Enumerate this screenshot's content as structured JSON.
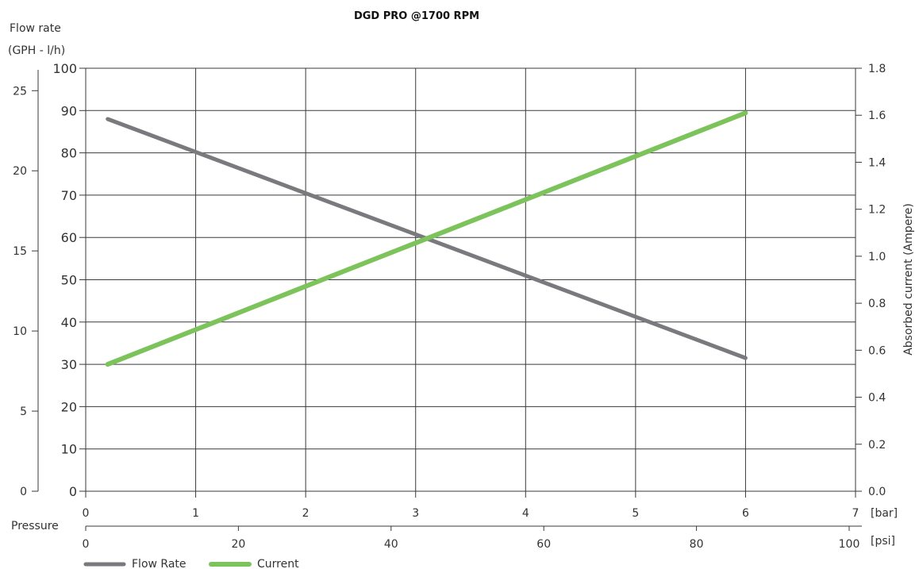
{
  "chart_data": {
    "type": "line",
    "title": "DGD PRO @1700 RPM",
    "left_axis_title_line1": "Flow rate",
    "left_axis_title_line2": "(GPH - l/h)",
    "right_axis_title": "Absorbed current  (Ampere)",
    "xlabel": "Pressure",
    "bar_unit": "[bar]",
    "psi_unit": "[psi]",
    "x_bar": [
      0.2,
      1,
      2,
      3,
      4,
      5,
      6
    ],
    "x_ticks_bar": [
      "0",
      "1",
      "2",
      "3",
      "4",
      "5",
      "6",
      "7"
    ],
    "x_ticks_psi": [
      "0",
      "20",
      "40",
      "60",
      "80",
      "100"
    ],
    "psi_range": [
      0,
      100
    ],
    "bar_range": [
      0,
      7
    ],
    "lh_ticks": [
      "0",
      "10",
      "20",
      "30",
      "40",
      "50",
      "60",
      "70",
      "80",
      "90",
      "100"
    ],
    "lh_range": [
      0,
      100
    ],
    "gph_ticks": [
      "0",
      "5",
      "10",
      "15",
      "20",
      "25"
    ],
    "gph_range": [
      0,
      26.4
    ],
    "ampere_ticks": [
      "0.0",
      "0.2",
      "0.4",
      "0.6",
      "0.8",
      "1.0",
      "1.2",
      "1.4",
      "1.6",
      "1.8"
    ],
    "ampere_range": [
      0,
      1.8
    ],
    "grid": true,
    "legend_position": "bottom-left",
    "series": [
      {
        "name": "Flow Rate",
        "axis": "l/h",
        "color": "#7a7a7e",
        "x": [
          0.2,
          6
        ],
        "y": [
          88,
          31.5
        ]
      },
      {
        "name": "Current",
        "axis": "ampere",
        "color": "#7dc35b",
        "x": [
          0.2,
          6
        ],
        "y": [
          0.54,
          1.61
        ]
      }
    ]
  }
}
